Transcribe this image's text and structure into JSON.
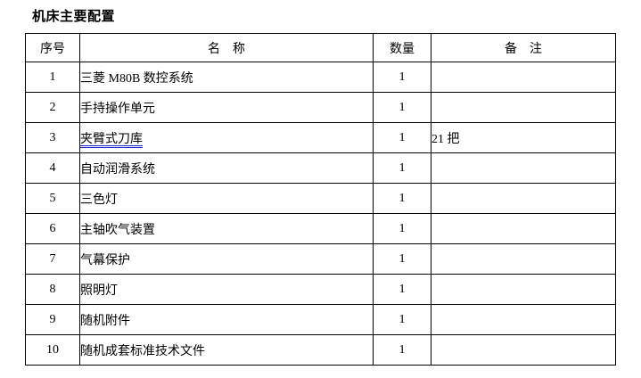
{
  "page": {
    "title": "机床主要配置"
  },
  "table": {
    "headers": {
      "no": "序号",
      "name": "名　称",
      "qty": "数量",
      "remark": "备　注"
    },
    "underline_color": "#2222cc",
    "rows": [
      {
        "no": "1",
        "name": "三菱 M80B 数控系统",
        "qty": "1",
        "remark": "",
        "underline": false
      },
      {
        "no": "2",
        "name": "手持操作单元",
        "qty": "1",
        "remark": "",
        "underline": false
      },
      {
        "no": "3",
        "name": "夹臂式刀库",
        "qty": "1",
        "remark": "21 把",
        "underline": true
      },
      {
        "no": "4",
        "name": "自动润滑系统",
        "qty": "1",
        "remark": "",
        "underline": false
      },
      {
        "no": "5",
        "name": "三色灯",
        "qty": "1",
        "remark": "",
        "underline": false
      },
      {
        "no": "6",
        "name": "主轴吹气装置",
        "qty": "1",
        "remark": "",
        "underline": false
      },
      {
        "no": "7",
        "name": "气幕保护",
        "qty": "1",
        "remark": "",
        "underline": false
      },
      {
        "no": "8",
        "name": "照明灯",
        "qty": "1",
        "remark": "",
        "underline": false
      },
      {
        "no": "9",
        "name": "随机附件",
        "qty": "1",
        "remark": "",
        "underline": false
      },
      {
        "no": "10",
        "name": "随机成套标准技术文件",
        "qty": "1",
        "remark": "",
        "underline": false
      }
    ]
  }
}
